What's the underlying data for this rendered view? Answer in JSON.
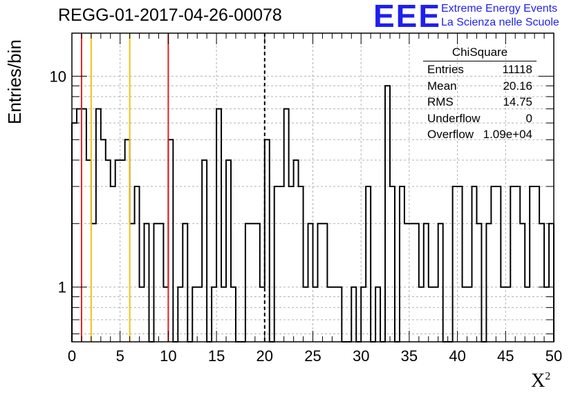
{
  "title": "REGG-01-2017-04-26-00078",
  "logo": {
    "mark": "EEE",
    "line1": "Extreme Energy Events",
    "line2": "La Scienza nelle Scuole",
    "color": "#1f1ff0"
  },
  "stats": {
    "title": "ChiSquare",
    "rows": [
      {
        "label": "Entries",
        "value": "11118"
      },
      {
        "label": "Mean",
        "value": "20.16"
      },
      {
        "label": "RMS",
        "value": "14.75"
      },
      {
        "label": "Underflow",
        "value": "0"
      },
      {
        "label": "Overflow",
        "value": "1.09e+04"
      }
    ]
  },
  "chart_data": {
    "type": "histogram",
    "ylabel": "Entries/bin",
    "xlabel": "X",
    "xlabel_sup": "2",
    "xlim": [
      0,
      50
    ],
    "ylim": [
      0.55,
      16
    ],
    "yscale": "log",
    "grid": true,
    "bin_width": 0.5,
    "x_ticks": [
      "0",
      "5",
      "10",
      "15",
      "20",
      "25",
      "30",
      "35",
      "40",
      "45",
      "50"
    ],
    "y_tick_labels": [
      {
        "value": 1,
        "label": "1"
      },
      {
        "value": 10,
        "label": "10"
      }
    ],
    "values": [
      6,
      7,
      7,
      4,
      2,
      7,
      5,
      4,
      3,
      4,
      4,
      5,
      2,
      3,
      1,
      2,
      0,
      2,
      2,
      1,
      5,
      0,
      1,
      2,
      0,
      1,
      1,
      4,
      0,
      1,
      7,
      1,
      4,
      1,
      0,
      0,
      2,
      2,
      2,
      1,
      5,
      0,
      3,
      3,
      7,
      3,
      4,
      3,
      1,
      2,
      1,
      2,
      2,
      1,
      1,
      1,
      0,
      0,
      1,
      0,
      1,
      3,
      0,
      1,
      0,
      9,
      3,
      0,
      3,
      2,
      2,
      2,
      1,
      2,
      1,
      1,
      2,
      0,
      0,
      3,
      3,
      1,
      1,
      3,
      2,
      0,
      2,
      3,
      3,
      1,
      1,
      3,
      3,
      2,
      1,
      3,
      3,
      2,
      1,
      2
    ],
    "vertical_lines": [
      {
        "x": 1,
        "color": "#e32020",
        "style": "solid"
      },
      {
        "x": 2,
        "color": "#f2c114",
        "style": "solid"
      },
      {
        "x": 6,
        "color": "#f2c114",
        "style": "solid"
      },
      {
        "x": 10,
        "color": "#e32020",
        "style": "solid"
      },
      {
        "x": 20,
        "color": "#000000",
        "style": "dashed"
      }
    ]
  }
}
